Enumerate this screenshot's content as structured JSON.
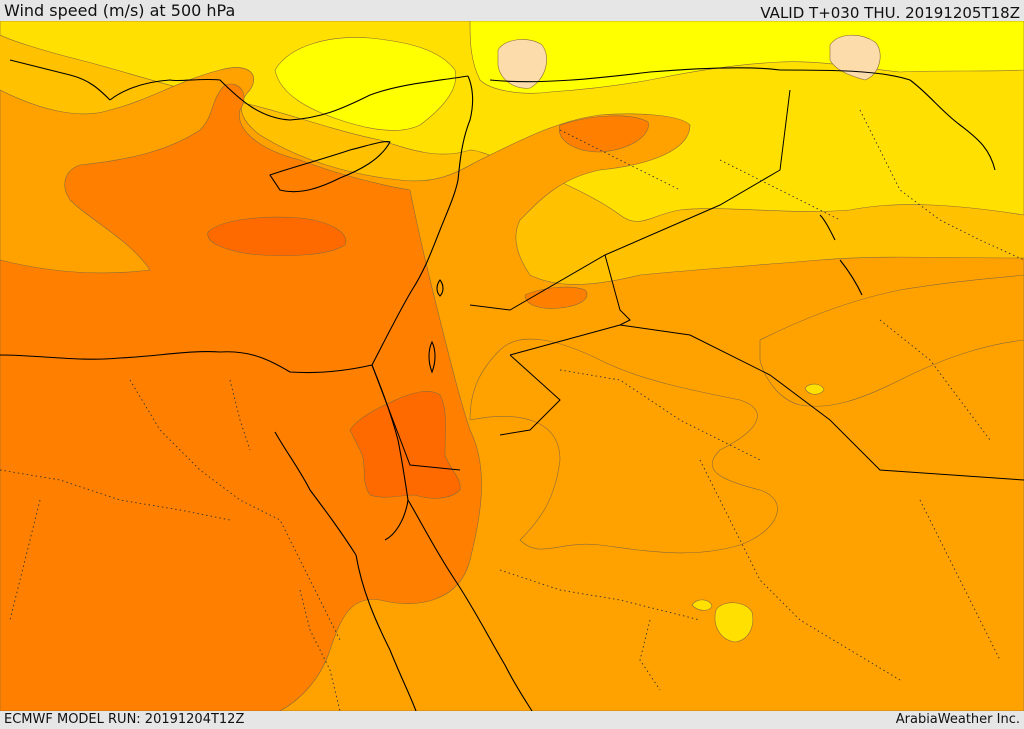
{
  "header": {
    "title": "Wind speed (m/s) at 500 hPa",
    "valid": "VALID T+030 THU. 20191205T18Z"
  },
  "footer": {
    "model_run": "ECMWF MODEL RUN: 20191204T12Z",
    "credit": "ArabiaWeather Inc."
  },
  "colors": {
    "very_light": "#fbdcaa",
    "light_yellow": "#ffff00",
    "yellow": "#ffe000",
    "yellow_orange": "#ffc100",
    "light_orange": "#ffa200",
    "orange": "#ff8000",
    "dark_orange": "#ff6a00",
    "coastline": "#000000",
    "contour": "#7a5a3a"
  }
}
